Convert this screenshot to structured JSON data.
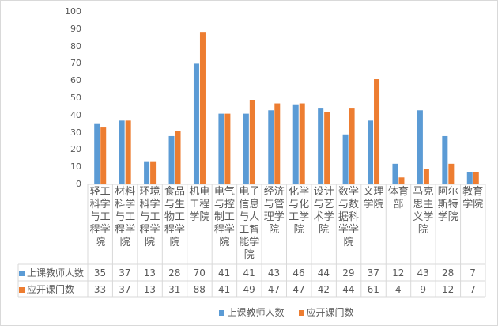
{
  "chart_data": {
    "type": "bar",
    "categories": [
      "轻工科学与工程学院",
      "材料科学与工程学院",
      "环境科学与工程学院",
      "食品与生物工程学院",
      "机电工程学院",
      "电气与控制工程学院",
      "电子信息与人工智能学院",
      "经济与管理学院",
      "化学与化工学院",
      "设计与艺术学院",
      "数学与数据科学学院",
      "文理学院",
      "体育部",
      "马克思主义学院",
      "阿尔斯特学院",
      "教育学院"
    ],
    "series": [
      {
        "name": "上课教师人数",
        "color": "#5B9BD5",
        "values": [
          35,
          37,
          13,
          28,
          70,
          41,
          41,
          43,
          46,
          44,
          29,
          37,
          12,
          43,
          28,
          7
        ]
      },
      {
        "name": "应开课门数",
        "color": "#ED7D31",
        "values": [
          33,
          37,
          13,
          31,
          88,
          41,
          49,
          47,
          47,
          42,
          44,
          61,
          4,
          9,
          12,
          7
        ]
      }
    ],
    "ylim": [
      0,
      100
    ],
    "yticks": [
      0,
      10,
      20,
      30,
      40,
      50,
      60,
      70,
      80,
      90,
      100
    ],
    "grid": false,
    "legend": "bottom",
    "data_table": true
  }
}
